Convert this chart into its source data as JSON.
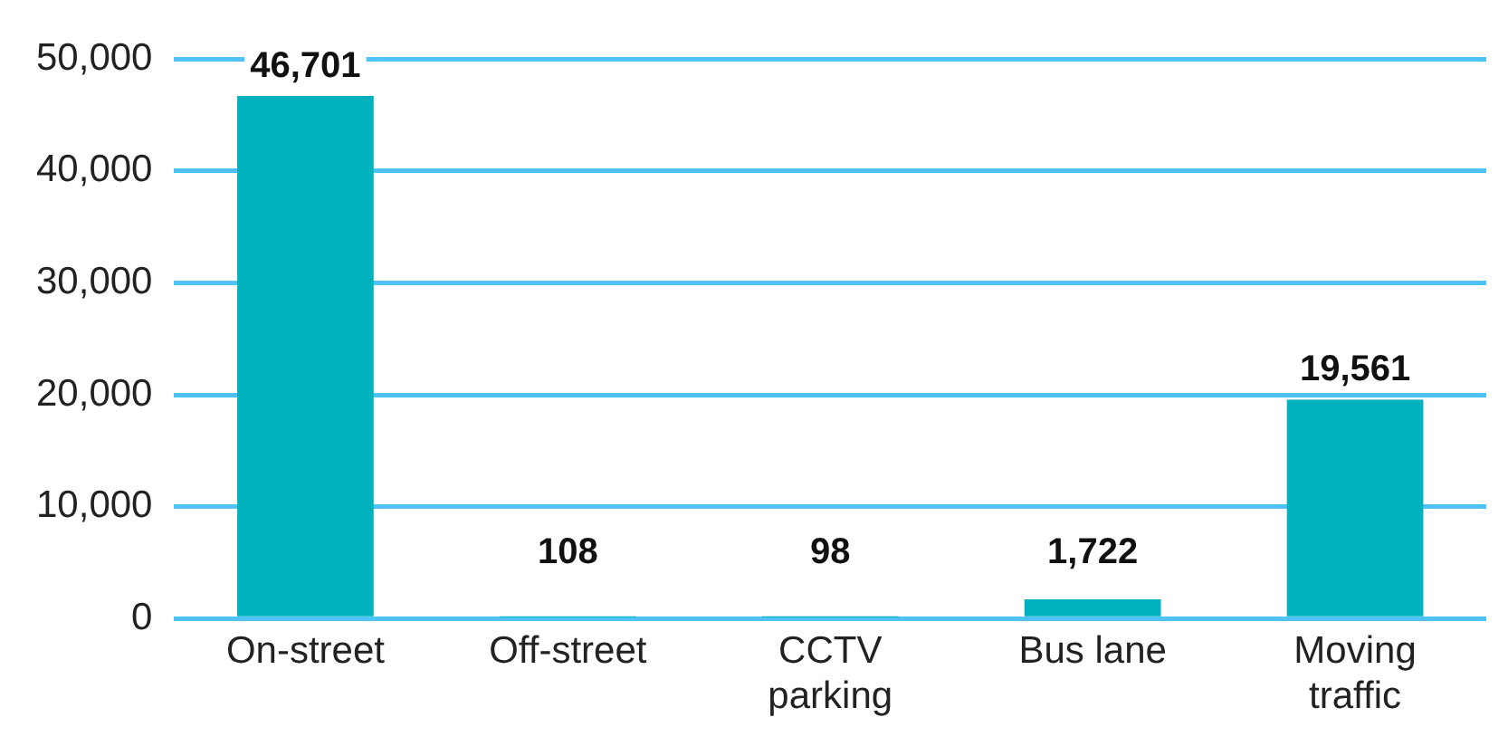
{
  "chart_data": {
    "type": "bar",
    "categories": [
      "On-street",
      "Off-street",
      "CCTV parking",
      "Bus lane",
      "Moving traffic"
    ],
    "values": [
      46701,
      108,
      98,
      1722,
      19561
    ],
    "color": "#00b2bd",
    "value_labels": [
      "46,701",
      "108",
      "98",
      "1,722",
      "19,561"
    ],
    "ylim": [
      0,
      50000
    ],
    "yticks": [
      0,
      {
        "value": 10000,
        "label": "10,000"
      },
      {
        "value": 20000,
        "label": "20,000"
      },
      {
        "value": 30000,
        "label": "30,000"
      },
      {
        "value": 40000,
        "label": "40,000"
      },
      {
        "value": 50000,
        "label": "50,000"
      }
    ],
    "grid": "y"
  }
}
